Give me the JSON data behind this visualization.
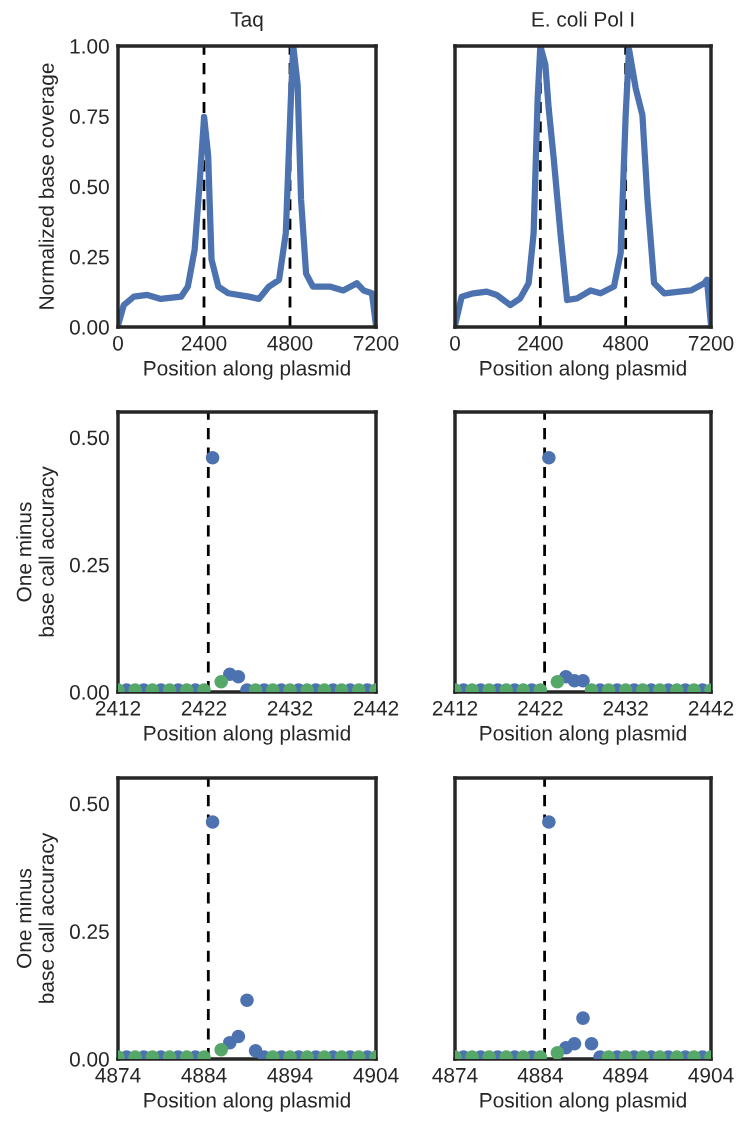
{
  "chart_data": [
    {
      "type": "line",
      "title": "Taq",
      "xlabel": "Position along plasmid",
      "ylabel": "Normalized base coverage",
      "xlim": [
        0,
        7200
      ],
      "xticks": [
        0,
        2400,
        4800,
        7200
      ],
      "ylim": [
        0,
        1.0
      ],
      "yticks": [
        {
          "value": 0,
          "label": "0.00"
        },
        {
          "value": 0.25,
          "label": "0.25"
        },
        {
          "value": 0.5,
          "label": "0.50"
        },
        {
          "value": 0.75,
          "label": "0.75"
        },
        {
          "value": 1.0,
          "label": "1.00"
        }
      ],
      "ref_lines": [
        {
          "axis": "x",
          "value": 2400,
          "color": "#000000",
          "line_style": "dashed"
        },
        {
          "axis": "x",
          "value": 4800,
          "color": "#000000",
          "line_style": "dashed"
        }
      ],
      "series": [
        {
          "color": "#4c72b0",
          "x": [
            0,
            160,
            443,
            820,
            1197,
            1762,
            1950,
            2139,
            2280,
            2403,
            2516,
            2610,
            2799,
            3082,
            3647,
            3930,
            4212,
            4495,
            4684,
            4825,
            4891,
            5013,
            5108,
            5249,
            5438,
            5909,
            6286,
            6663,
            6852,
            7087,
            7200
          ],
          "values": [
            0.006,
            0.078,
            0.108,
            0.114,
            0.1,
            0.108,
            0.144,
            0.275,
            0.515,
            0.748,
            0.61,
            0.24,
            0.144,
            0.12,
            0.108,
            0.1,
            0.144,
            0.168,
            0.335,
            0.814,
            1.0,
            0.862,
            0.455,
            0.19,
            0.144,
            0.144,
            0.13,
            0.156,
            0.13,
            0.12,
            0.006
          ]
        }
      ]
    },
    {
      "type": "line",
      "title": "E. coli Pol I",
      "xlabel": "Position along plasmid",
      "tick_labels": "x",
      "xlim": [
        0,
        7200
      ],
      "xticks": [
        0,
        2400,
        4800,
        7200
      ],
      "ylim": [
        0,
        1.0
      ],
      "ref_lines": [
        {
          "axis": "x",
          "value": 2400,
          "color": "#000000",
          "line_style": "dashed"
        },
        {
          "axis": "x",
          "value": 4800,
          "color": "#000000",
          "line_style": "dashed"
        }
      ],
      "series": [
        {
          "color": "#4c72b0",
          "x": [
            0,
            188,
            518,
            894,
            1176,
            1553,
            1835,
            2071,
            2212,
            2325,
            2400,
            2541,
            2635,
            2776,
            2965,
            3153,
            3435,
            3812,
            4094,
            4471,
            4659,
            4800,
            4894,
            5082,
            5271,
            5412,
            5600,
            5882,
            6635,
            7012,
            7087,
            7200
          ],
          "values": [
            0.006,
            0.108,
            0.12,
            0.126,
            0.114,
            0.078,
            0.102,
            0.156,
            0.335,
            0.814,
            1.0,
            0.934,
            0.778,
            0.6,
            0.335,
            0.096,
            0.102,
            0.13,
            0.12,
            0.144,
            0.263,
            0.754,
            0.988,
            0.85,
            0.754,
            0.455,
            0.156,
            0.12,
            0.13,
            0.156,
            0.168,
            0.006
          ]
        }
      ]
    },
    {
      "type": "scatter",
      "marker": "circle",
      "xlabel": "Position along plasmid",
      "ylabel": "One minus\nbase call accuracy",
      "xlim": [
        2412,
        2442
      ],
      "xticks": [
        2412,
        2422,
        2432,
        2442
      ],
      "ylim": [
        0,
        0.55
      ],
      "yticks": [
        {
          "value": 0,
          "label": "0.00"
        },
        {
          "value": 0.25,
          "label": "0.25"
        },
        {
          "value": 0.5,
          "label": "0.50"
        }
      ],
      "ref_lines": [
        {
          "axis": "x",
          "value": 2422.5,
          "color": "#000000",
          "line_style": "dashed"
        }
      ],
      "x": [
        2412,
        2413,
        2414,
        2415,
        2416,
        2417,
        2418,
        2419,
        2420,
        2421,
        2422,
        2423,
        2424,
        2425,
        2426,
        2427,
        2428,
        2429,
        2430,
        2431,
        2432,
        2433,
        2434,
        2435,
        2436,
        2437,
        2438,
        2439,
        2440,
        2441,
        2442
      ],
      "series": [
        {
          "color": "#4c72b0",
          "values": [
            null,
            0.004,
            null,
            0.004,
            null,
            0.004,
            null,
            0.004,
            null,
            0.004,
            null,
            0.46,
            null,
            0.035,
            0.03,
            0.004,
            null,
            0.004,
            null,
            0.004,
            null,
            0.004,
            null,
            0.004,
            null,
            0.004,
            null,
            0.004,
            null,
            0.004,
            null
          ]
        },
        {
          "color": "#55a868",
          "values": [
            0.004,
            null,
            0.004,
            null,
            0.004,
            null,
            0.004,
            null,
            0.004,
            null,
            0.004,
            null,
            0.02,
            null,
            null,
            null,
            0.004,
            null,
            0.004,
            null,
            0.004,
            null,
            0.004,
            null,
            0.004,
            null,
            0.004,
            null,
            0.004,
            null,
            0.004
          ]
        }
      ]
    },
    {
      "type": "scatter",
      "marker": "circle",
      "xlabel": "Position along plasmid",
      "tick_labels": "x",
      "xlim": [
        2412,
        2442
      ],
      "xticks": [
        2412,
        2422,
        2432,
        2442
      ],
      "ylim": [
        0,
        0.55
      ],
      "ref_lines": [
        {
          "axis": "x",
          "value": 2422.5,
          "color": "#000000",
          "line_style": "dashed"
        }
      ],
      "x": [
        2412,
        2413,
        2414,
        2415,
        2416,
        2417,
        2418,
        2419,
        2420,
        2421,
        2422,
        2423,
        2424,
        2425,
        2426,
        2427,
        2428,
        2429,
        2430,
        2431,
        2432,
        2433,
        2434,
        2435,
        2436,
        2437,
        2438,
        2439,
        2440,
        2441,
        2442
      ],
      "series": [
        {
          "color": "#4c72b0",
          "values": [
            null,
            0.004,
            null,
            0.004,
            null,
            0.004,
            null,
            0.004,
            null,
            0.004,
            null,
            0.46,
            null,
            0.03,
            0.022,
            0.022,
            null,
            0.004,
            null,
            0.004,
            null,
            0.004,
            null,
            0.004,
            null,
            0.004,
            null,
            0.004,
            null,
            0.004,
            null
          ]
        },
        {
          "color": "#55a868",
          "values": [
            0.004,
            null,
            0.004,
            null,
            0.004,
            null,
            0.004,
            null,
            0.004,
            null,
            0.004,
            null,
            0.02,
            null,
            null,
            null,
            0.004,
            null,
            0.004,
            null,
            0.004,
            null,
            0.004,
            null,
            0.004,
            null,
            0.004,
            null,
            0.004,
            null,
            0.004
          ]
        }
      ]
    },
    {
      "type": "scatter",
      "marker": "circle",
      "xlabel": "Position along plasmid",
      "ylabel": "One minus\nbase call accuracy",
      "xlim": [
        4874,
        4904
      ],
      "xticks": [
        4874,
        4884,
        4894,
        4904
      ],
      "ylim": [
        0,
        0.55
      ],
      "yticks": [
        {
          "value": 0,
          "label": "0.00"
        },
        {
          "value": 0.25,
          "label": "0.25"
        },
        {
          "value": 0.5,
          "label": "0.50"
        }
      ],
      "ref_lines": [
        {
          "axis": "x",
          "value": 4884.5,
          "color": "#000000",
          "line_style": "dashed"
        }
      ],
      "x": [
        4874,
        4875,
        4876,
        4877,
        4878,
        4879,
        4880,
        4881,
        4882,
        4883,
        4884,
        4885,
        4886,
        4887,
        4888,
        4889,
        4890,
        4891,
        4892,
        4893,
        4894,
        4895,
        4896,
        4897,
        4898,
        4899,
        4900,
        4901,
        4902,
        4903,
        4904
      ],
      "series": [
        {
          "color": "#4c72b0",
          "values": [
            null,
            0.004,
            null,
            0.004,
            null,
            0.004,
            null,
            0.004,
            null,
            0.004,
            null,
            0.464,
            null,
            0.032,
            0.044,
            0.115,
            0.016,
            0.004,
            null,
            0.004,
            null,
            0.004,
            null,
            0.004,
            null,
            0.004,
            null,
            0.004,
            null,
            0.004,
            null
          ]
        },
        {
          "color": "#55a868",
          "values": [
            0.004,
            null,
            0.004,
            null,
            0.004,
            null,
            0.004,
            null,
            0.004,
            null,
            0.004,
            null,
            0.018,
            null,
            null,
            null,
            null,
            null,
            0.004,
            null,
            0.004,
            null,
            0.004,
            null,
            0.004,
            null,
            0.004,
            null,
            0.004,
            null,
            0.004
          ]
        }
      ]
    },
    {
      "type": "scatter",
      "marker": "circle",
      "xlabel": "Position along plasmid",
      "tick_labels": "x",
      "xlim": [
        4874,
        4904
      ],
      "xticks": [
        4874,
        4884,
        4894,
        4904
      ],
      "ylim": [
        0,
        0.55
      ],
      "ref_lines": [
        {
          "axis": "x",
          "value": 4884.5,
          "color": "#000000",
          "line_style": "dashed"
        }
      ],
      "x": [
        4874,
        4875,
        4876,
        4877,
        4878,
        4879,
        4880,
        4881,
        4882,
        4883,
        4884,
        4885,
        4886,
        4887,
        4888,
        4889,
        4890,
        4891,
        4892,
        4893,
        4894,
        4895,
        4896,
        4897,
        4898,
        4899,
        4900,
        4901,
        4902,
        4903,
        4904
      ],
      "series": [
        {
          "color": "#4c72b0",
          "values": [
            null,
            0.004,
            null,
            0.004,
            null,
            0.004,
            null,
            0.004,
            null,
            0.004,
            null,
            0.464,
            null,
            0.022,
            0.03,
            0.08,
            0.03,
            0.004,
            null,
            0.004,
            null,
            0.004,
            null,
            0.004,
            null,
            0.004,
            null,
            0.004,
            null,
            0.004,
            null
          ]
        },
        {
          "color": "#55a868",
          "values": [
            0.004,
            null,
            0.004,
            null,
            0.004,
            null,
            0.004,
            null,
            0.004,
            null,
            0.004,
            null,
            0.012,
            null,
            null,
            null,
            null,
            null,
            0.004,
            null,
            0.004,
            null,
            0.004,
            null,
            0.004,
            null,
            0.004,
            null,
            0.004,
            null,
            0.004
          ]
        }
      ]
    }
  ]
}
